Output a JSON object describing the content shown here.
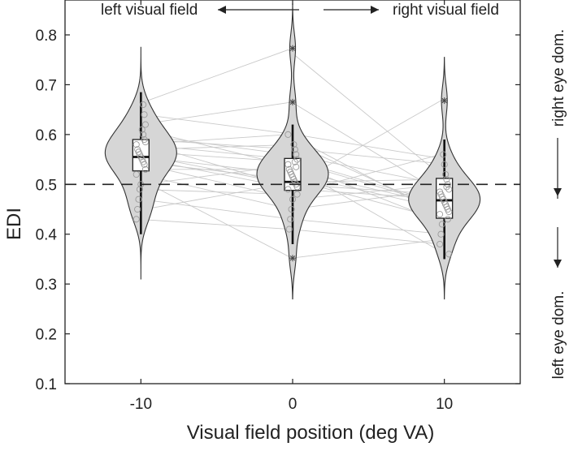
{
  "chart_data": {
    "type": "violin",
    "xlabel": "Visual field position (deg VA)",
    "ylabel": "EDI",
    "x_categories": [
      -10,
      0,
      10
    ],
    "x_tick_labels": [
      "-10",
      "0",
      "10"
    ],
    "xlim": [
      -15,
      15
    ],
    "ylim": [
      0.1,
      0.87
    ],
    "y_ticks": [
      0.1,
      0.2,
      0.3,
      0.4,
      0.5,
      0.6,
      0.7,
      0.8
    ],
    "y_tick_labels": [
      "0.1",
      "0.2",
      "0.3",
      "0.4",
      "0.5",
      "0.6",
      "0.7",
      "0.8"
    ],
    "reference_line": {
      "y": 0.5,
      "style": "dashed"
    },
    "grid": false,
    "annotations": {
      "top_left": "left visual field",
      "top_right": "right visual field",
      "right_upper": "right eye dom.",
      "right_lower": "left eye dom."
    },
    "groups": [
      {
        "x": -10,
        "violin_range": [
          0.31,
          0.775
        ],
        "median": 0.555,
        "q1": 0.527,
        "q3": 0.59,
        "whisker_low": 0.4,
        "whisker_high": 0.685,
        "outliers": [],
        "points": [
          0.52,
          0.53,
          0.54,
          0.545,
          0.55,
          0.555,
          0.56,
          0.565,
          0.57,
          0.58,
          0.585,
          0.59,
          0.6,
          0.61,
          0.5,
          0.49,
          0.47,
          0.45,
          0.43,
          0.62,
          0.64,
          0.66
        ]
      },
      {
        "x": 0,
        "violin_range": [
          0.27,
          0.862
        ],
        "median": 0.505,
        "q1": 0.488,
        "q3": 0.552,
        "whisker_low": 0.38,
        "whisker_high": 0.62,
        "outliers": [
          0.352,
          0.665,
          0.773
        ],
        "points": [
          0.49,
          0.495,
          0.5,
          0.505,
          0.51,
          0.515,
          0.52,
          0.525,
          0.53,
          0.54,
          0.55,
          0.56,
          0.57,
          0.58,
          0.47,
          0.45,
          0.43,
          0.41,
          0.6,
          0.48,
          0.535,
          0.545
        ]
      },
      {
        "x": 10,
        "violin_range": [
          0.27,
          0.755
        ],
        "median": 0.468,
        "q1": 0.432,
        "q3": 0.512,
        "whisker_low": 0.35,
        "whisker_high": 0.59,
        "outliers": [
          0.668
        ],
        "points": [
          0.44,
          0.445,
          0.45,
          0.455,
          0.46,
          0.465,
          0.47,
          0.475,
          0.48,
          0.485,
          0.49,
          0.5,
          0.51,
          0.52,
          0.54,
          0.56,
          0.42,
          0.4,
          0.38,
          0.36,
          0.43,
          0.495
        ]
      }
    ],
    "paired_lines": [
      [
        0.66,
        0.77,
        0.52
      ],
      [
        0.62,
        0.665,
        0.48
      ],
      [
        0.64,
        0.6,
        0.55
      ],
      [
        0.6,
        0.56,
        0.5
      ],
      [
        0.58,
        0.55,
        0.46
      ],
      [
        0.57,
        0.58,
        0.44
      ],
      [
        0.56,
        0.5,
        0.48
      ],
      [
        0.555,
        0.52,
        0.45
      ],
      [
        0.55,
        0.49,
        0.47
      ],
      [
        0.545,
        0.51,
        0.43
      ],
      [
        0.54,
        0.47,
        0.5
      ],
      [
        0.53,
        0.53,
        0.46
      ],
      [
        0.52,
        0.45,
        0.49
      ],
      [
        0.5,
        0.54,
        0.42
      ],
      [
        0.49,
        0.48,
        0.56
      ],
      [
        0.47,
        0.43,
        0.4
      ],
      [
        0.45,
        0.505,
        0.51
      ],
      [
        0.43,
        0.41,
        0.38
      ],
      [
        0.61,
        0.535,
        0.36
      ],
      [
        0.59,
        0.57,
        0.54
      ],
      [
        0.585,
        0.495,
        0.67
      ],
      [
        0.565,
        0.545,
        0.455
      ],
      [
        0.58,
        0.6,
        0.44
      ],
      [
        0.51,
        0.352,
        0.39
      ]
    ]
  }
}
